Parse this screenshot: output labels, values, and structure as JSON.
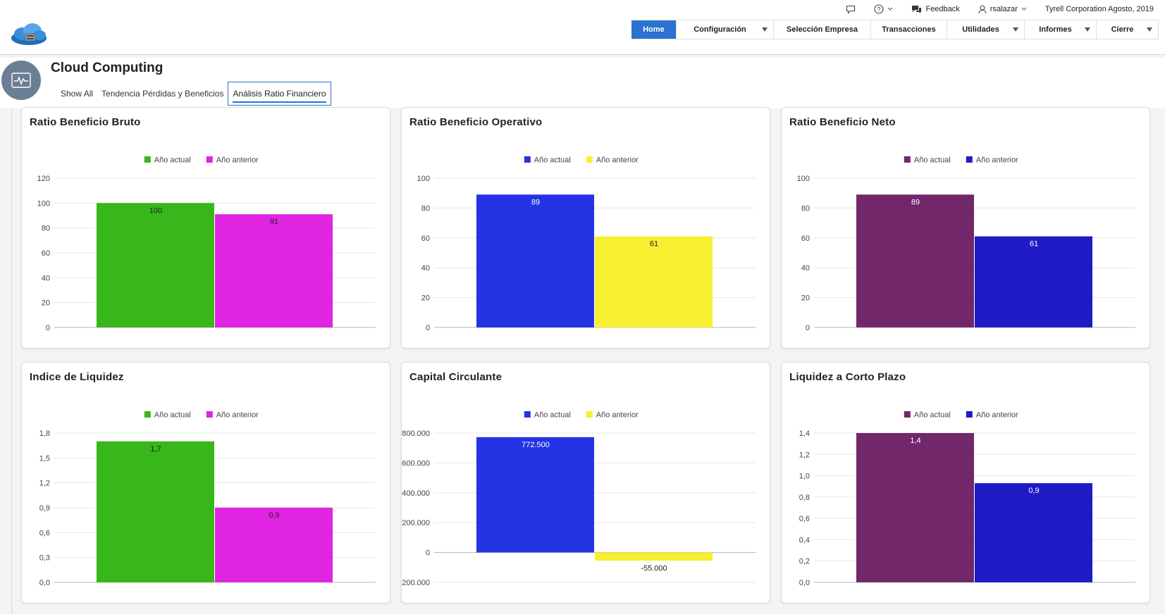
{
  "utility": {
    "feedback": "Feedback",
    "user": "rsalazar",
    "company": "Tyrell Corporation Agosto, 2019"
  },
  "nav": [
    {
      "label": "Home",
      "active": true,
      "dropdown": false
    },
    {
      "label": "Configuración",
      "active": false,
      "dropdown": true
    },
    {
      "label": "Selección Empresa",
      "active": false,
      "dropdown": false
    },
    {
      "label": "Transacciones",
      "active": false,
      "dropdown": false
    },
    {
      "label": "Utilidades",
      "active": false,
      "dropdown": true
    },
    {
      "label": "Informes",
      "active": false,
      "dropdown": true
    },
    {
      "label": "Cierre",
      "active": false,
      "dropdown": true
    }
  ],
  "page": {
    "title": "Cloud Computing",
    "tabs": [
      {
        "label": "Show All",
        "selected": false
      },
      {
        "label": "Tendencia Pérdidas y Beneficios",
        "selected": false
      },
      {
        "label": "Análisis Ratio Financiero",
        "selected": true
      }
    ]
  },
  "chart_data": [
    {
      "type": "bar",
      "title": "Ratio Beneficio Bruto",
      "categories": [
        ""
      ],
      "series": [
        {
          "name": "Año actual",
          "values": [
            100
          ],
          "color": "#38b71b",
          "label": "100",
          "label_color": "#222222"
        },
        {
          "name": "Año anterior",
          "values": [
            91
          ],
          "color": "#df24e2",
          "label": "91",
          "label_color": "#222222"
        }
      ],
      "ylim": [
        0,
        120
      ],
      "yticks": [
        "0",
        "20",
        "40",
        "60",
        "80",
        "100",
        "120"
      ],
      "legend": "top-center",
      "grid": true
    },
    {
      "type": "bar",
      "title": "Ratio Beneficio Operativo",
      "categories": [
        ""
      ],
      "series": [
        {
          "name": "Año actual",
          "values": [
            89
          ],
          "color": "#2433e4",
          "label": "89",
          "label_color": "#ffffff"
        },
        {
          "name": "Año anterior",
          "values": [
            61
          ],
          "color": "#f9ef31",
          "label": "61",
          "label_color": "#222222"
        }
      ],
      "ylim": [
        0,
        100
      ],
      "yticks": [
        "0",
        "20",
        "40",
        "60",
        "80",
        "100"
      ],
      "legend": "top-center",
      "grid": true
    },
    {
      "type": "bar",
      "title": "Ratio Beneficio Neto",
      "categories": [
        ""
      ],
      "series": [
        {
          "name": "Año actual",
          "values": [
            89
          ],
          "color": "#72276b",
          "label": "89",
          "label_color": "#ffffff"
        },
        {
          "name": "Año anterior",
          "values": [
            61
          ],
          "color": "#1f1bc4",
          "label": "61",
          "label_color": "#ffffff"
        }
      ],
      "ylim": [
        0,
        100
      ],
      "yticks": [
        "0",
        "20",
        "40",
        "60",
        "80",
        "100"
      ],
      "legend": "top-center",
      "grid": true
    },
    {
      "type": "bar",
      "title": "Indice de Liquidez",
      "categories": [
        ""
      ],
      "series": [
        {
          "name": "Año actual",
          "values": [
            1.7
          ],
          "color": "#38b71b",
          "label": "1,7",
          "label_color": "#222222"
        },
        {
          "name": "Año anterior",
          "values": [
            0.9
          ],
          "color": "#df24e2",
          "label": "0,9",
          "label_color": "#222222"
        }
      ],
      "ylim": [
        0,
        1.8
      ],
      "yticks": [
        "0,0",
        "0,3",
        "0,6",
        "0,9",
        "1,2",
        "1,5",
        "1,8"
      ],
      "legend": "top-center",
      "grid": true
    },
    {
      "type": "bar",
      "title": "Capital Circulante",
      "categories": [
        ""
      ],
      "series": [
        {
          "name": "Año actual",
          "values": [
            772500
          ],
          "color": "#2433e4",
          "label": "772.500",
          "label_color": "#ffffff"
        },
        {
          "name": "Año anterior",
          "values": [
            -55000
          ],
          "color": "#f9ef31",
          "label": "-55.000",
          "label_color": "#222222"
        }
      ],
      "ylim": [
        -200000,
        800000
      ],
      "yticks": [
        "-200.000",
        "0",
        "200.000",
        "400.000",
        "600.000",
        "800.000"
      ],
      "legend": "top-center",
      "grid": true
    },
    {
      "type": "bar",
      "title": "Liquidez a Corto Plazo",
      "categories": [
        ""
      ],
      "series": [
        {
          "name": "Año actual",
          "values": [
            1.4
          ],
          "color": "#72276b",
          "label": "1,4",
          "label_color": "#ffffff"
        },
        {
          "name": "Año anterior",
          "values": [
            0.93
          ],
          "color": "#1f1bc4",
          "label": "0,9",
          "label_color": "#ffffff"
        }
      ],
      "ylim": [
        0,
        1.4
      ],
      "yticks": [
        "0,0",
        "0,2",
        "0,4",
        "0,6",
        "0,8",
        "1,0",
        "1,2",
        "1,4"
      ],
      "legend": "top-center",
      "grid": true
    }
  ]
}
